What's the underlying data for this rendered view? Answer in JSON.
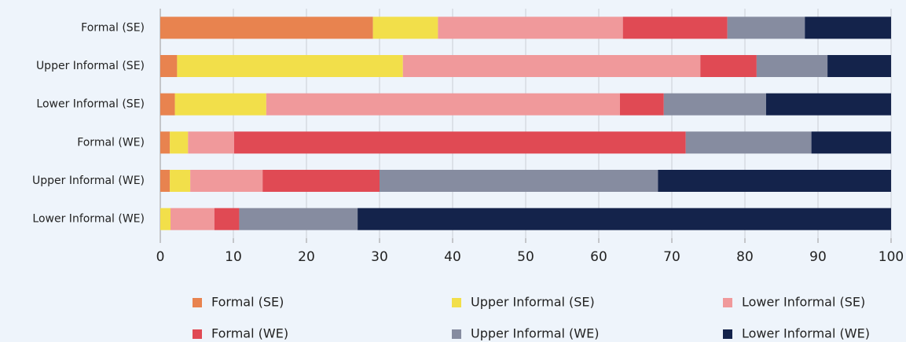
{
  "chart_data": {
    "type": "stacked-barh",
    "categories": [
      "Formal (SE)",
      "Upper Informal (SE)",
      "Lower Informal (SE)",
      "Formal (WE)",
      "Upper Informal (WE)",
      "Lower Informal (WE)"
    ],
    "series": [
      {
        "name": "Formal (SE)",
        "color": "#e8834f",
        "values": [
          29.1,
          2.3,
          2.0,
          1.3,
          1.3,
          0
        ]
      },
      {
        "name": "Upper Informal (SE)",
        "color": "#f2df4a",
        "values": [
          8.9,
          30.9,
          12.5,
          2.5,
          2.8,
          1.4
        ]
      },
      {
        "name": "Lower Informal (SE)",
        "color": "#f0999b",
        "values": [
          25.3,
          40.7,
          48.4,
          6.3,
          9.9,
          6.0
        ]
      },
      {
        "name": "Formal (WE)",
        "color": "#e04a54",
        "values": [
          14.3,
          7.7,
          6.0,
          61.8,
          16.0,
          3.4
        ]
      },
      {
        "name": "Upper Informal (WE)",
        "color": "#868ca0",
        "values": [
          10.6,
          9.7,
          14.0,
          17.2,
          38.1,
          16.2
        ]
      },
      {
        "name": "Lower Informal (WE)",
        "color": "#14234b",
        "values": [
          11.8,
          8.7,
          17.1,
          10.9,
          31.9,
          73.0
        ]
      }
    ],
    "xlim": [
      0,
      100
    ],
    "xticks": [
      0,
      10,
      20,
      30,
      40,
      50,
      60,
      70,
      80,
      90,
      100
    ],
    "grid": true,
    "legend": "bottom"
  }
}
